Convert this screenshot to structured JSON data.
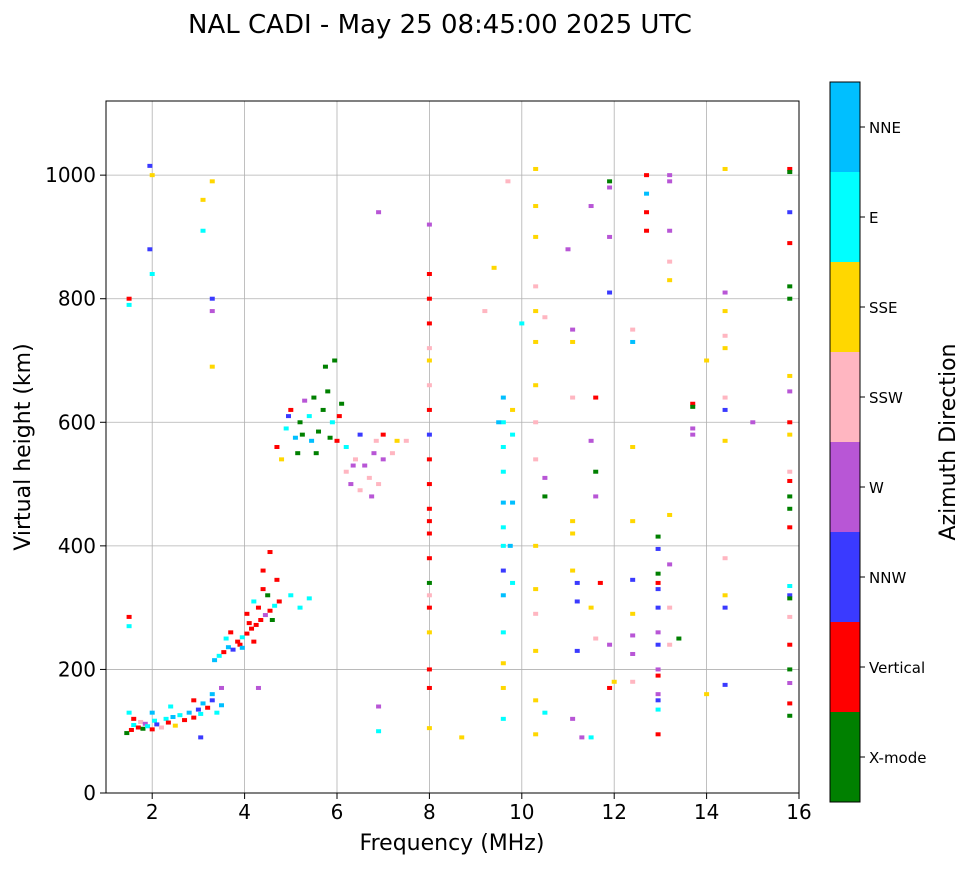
{
  "chart_data": {
    "type": "scatter",
    "title": "NAL CADI - May 25 08:45:00 2025 UTC",
    "xlabel": "Frequency (MHz)",
    "ylabel": "Virtual height (km)",
    "xlim": [
      1,
      16
    ],
    "ylim": [
      0,
      1120
    ],
    "xticks": [
      2,
      4,
      6,
      8,
      10,
      12,
      14,
      16
    ],
    "yticks": [
      0,
      200,
      400,
      600,
      800,
      1000
    ],
    "grid": true,
    "colorbar": {
      "label": "Azimuth Direction",
      "categories": [
        {
          "name": "X-mode",
          "color": "#008000"
        },
        {
          "name": "Vertical",
          "color": "#ff0000"
        },
        {
          "name": "NNW",
          "color": "#3a3aff"
        },
        {
          "name": "W",
          "color": "#b856d6"
        },
        {
          "name": "SSW",
          "color": "#ffb6c1"
        },
        {
          "name": "SSE",
          "color": "#ffd700"
        },
        {
          "name": "E",
          "color": "#00ffff"
        },
        {
          "name": "NNE",
          "color": "#00bfff"
        }
      ]
    },
    "points": [
      [
        1.45,
        97,
        0
      ],
      [
        1.55,
        102,
        1
      ],
      [
        1.6,
        110,
        6
      ],
      [
        1.7,
        106,
        1
      ],
      [
        1.75,
        115,
        4
      ],
      [
        1.8,
        104,
        0
      ],
      [
        1.85,
        112,
        3
      ],
      [
        1.9,
        108,
        6
      ],
      [
        2.0,
        103,
        1
      ],
      [
        2.05,
        117,
        6
      ],
      [
        2.1,
        111,
        2
      ],
      [
        2.2,
        106,
        4
      ],
      [
        2.3,
        120,
        6
      ],
      [
        2.35,
        114,
        1
      ],
      [
        2.45,
        123,
        7
      ],
      [
        2.5,
        109,
        5
      ],
      [
        2.6,
        126,
        6
      ],
      [
        2.7,
        118,
        1
      ],
      [
        2.8,
        130,
        7
      ],
      [
        2.9,
        122,
        1
      ],
      [
        3.0,
        135,
        2
      ],
      [
        3.05,
        128,
        6
      ],
      [
        3.1,
        145,
        7
      ],
      [
        3.2,
        138,
        1
      ],
      [
        3.3,
        150,
        2
      ],
      [
        3.4,
        130,
        6
      ],
      [
        3.5,
        142,
        7
      ],
      [
        1.5,
        130,
        6
      ],
      [
        1.6,
        120,
        1
      ],
      [
        2.0,
        130,
        7
      ],
      [
        2.4,
        140,
        6
      ],
      [
        2.9,
        150,
        1
      ],
      [
        3.3,
        160,
        7
      ],
      [
        3.35,
        215,
        7
      ],
      [
        3.45,
        222,
        6
      ],
      [
        3.55,
        228,
        1
      ],
      [
        3.65,
        236,
        7
      ],
      [
        3.75,
        232,
        2
      ],
      [
        3.85,
        245,
        1
      ],
      [
        3.95,
        252,
        6
      ],
      [
        4.05,
        258,
        1
      ],
      [
        4.15,
        266,
        1
      ],
      [
        4.25,
        272,
        1
      ],
      [
        4.35,
        280,
        1
      ],
      [
        4.45,
        288,
        3
      ],
      [
        4.55,
        295,
        1
      ],
      [
        4.65,
        303,
        6
      ],
      [
        4.75,
        310,
        1
      ],
      [
        3.6,
        250,
        6
      ],
      [
        3.9,
        240,
        1
      ],
      [
        4.1,
        275,
        1
      ],
      [
        4.3,
        300,
        1
      ],
      [
        4.5,
        320,
        0
      ],
      [
        4.7,
        345,
        1
      ],
      [
        4.2,
        310,
        6
      ],
      [
        4.4,
        360,
        1
      ],
      [
        4.55,
        390,
        1
      ],
      [
        5.0,
        320,
        6
      ],
      [
        5.2,
        300,
        6
      ],
      [
        5.4,
        315,
        6
      ],
      [
        3.7,
        260,
        1
      ],
      [
        3.95,
        235,
        7
      ],
      [
        4.2,
        245,
        1
      ],
      [
        4.05,
        290,
        1
      ],
      [
        4.4,
        330,
        1
      ],
      [
        4.6,
        280,
        0
      ],
      [
        4.9,
        590,
        6
      ],
      [
        5.0,
        620,
        1
      ],
      [
        5.1,
        575,
        7
      ],
      [
        5.2,
        600,
        0
      ],
      [
        5.3,
        635,
        3
      ],
      [
        5.4,
        610,
        6
      ],
      [
        5.5,
        640,
        0
      ],
      [
        5.6,
        585,
        0
      ],
      [
        5.7,
        620,
        0
      ],
      [
        5.8,
        650,
        0
      ],
      [
        5.9,
        600,
        6
      ],
      [
        6.0,
        570,
        1
      ],
      [
        6.1,
        630,
        0
      ],
      [
        6.2,
        560,
        6
      ],
      [
        5.15,
        550,
        0
      ],
      [
        5.45,
        570,
        7
      ],
      [
        5.75,
        690,
        0
      ],
      [
        5.95,
        700,
        0
      ],
      [
        4.7,
        560,
        1
      ],
      [
        4.8,
        540,
        5
      ],
      [
        4.95,
        610,
        2
      ],
      [
        5.25,
        580,
        0
      ],
      [
        5.55,
        550,
        0
      ],
      [
        5.85,
        575,
        0
      ],
      [
        6.05,
        610,
        1
      ],
      [
        6.2,
        520,
        4
      ],
      [
        6.3,
        500,
        3
      ],
      [
        6.4,
        540,
        4
      ],
      [
        6.5,
        490,
        4
      ],
      [
        6.6,
        530,
        3
      ],
      [
        6.7,
        510,
        4
      ],
      [
        6.8,
        550,
        3
      ],
      [
        6.9,
        500,
        4
      ],
      [
        7.0,
        540,
        3
      ],
      [
        6.85,
        570,
        4
      ],
      [
        6.5,
        580,
        2
      ],
      [
        7.2,
        550,
        4
      ],
      [
        7.3,
        570,
        5
      ],
      [
        7.5,
        570,
        4
      ],
      [
        7.0,
        580,
        1
      ],
      [
        6.35,
        530,
        3
      ],
      [
        6.75,
        480,
        3
      ],
      [
        8.0,
        840,
        1
      ],
      [
        8.0,
        800,
        1
      ],
      [
        8.0,
        760,
        1
      ],
      [
        8.0,
        700,
        5
      ],
      [
        8.0,
        660,
        4
      ],
      [
        8.0,
        620,
        1
      ],
      [
        8.0,
        580,
        2
      ],
      [
        8.0,
        540,
        1
      ],
      [
        8.0,
        500,
        1
      ],
      [
        8.0,
        460,
        1
      ],
      [
        8.0,
        420,
        1
      ],
      [
        8.0,
        380,
        1
      ],
      [
        8.0,
        340,
        0
      ],
      [
        8.0,
        300,
        1
      ],
      [
        8.0,
        260,
        5
      ],
      [
        8.0,
        200,
        1
      ],
      [
        8.0,
        170,
        1
      ],
      [
        8.0,
        105,
        5
      ],
      [
        8.0,
        920,
        3
      ],
      [
        8.0,
        720,
        4
      ],
      [
        8.0,
        440,
        1
      ],
      [
        8.0,
        320,
        4
      ],
      [
        9.6,
        640,
        7
      ],
      [
        9.6,
        600,
        6
      ],
      [
        9.6,
        560,
        6
      ],
      [
        9.6,
        520,
        6
      ],
      [
        9.6,
        470,
        7
      ],
      [
        9.6,
        430,
        6
      ],
      [
        9.6,
        400,
        6
      ],
      [
        9.6,
        360,
        2
      ],
      [
        9.6,
        320,
        7
      ],
      [
        9.6,
        260,
        6
      ],
      [
        9.6,
        210,
        5
      ],
      [
        9.6,
        170,
        5
      ],
      [
        9.6,
        120,
        6
      ],
      [
        9.8,
        580,
        6
      ],
      [
        9.8,
        470,
        7
      ],
      [
        9.8,
        340,
        6
      ],
      [
        9.4,
        850,
        5
      ],
      [
        9.5,
        600,
        7
      ],
      [
        9.7,
        990,
        4
      ],
      [
        9.8,
        620,
        5
      ],
      [
        9.75,
        400,
        7
      ],
      [
        10.3,
        1010,
        5
      ],
      [
        10.3,
        950,
        5
      ],
      [
        10.3,
        900,
        5
      ],
      [
        10.3,
        820,
        4
      ],
      [
        10.3,
        780,
        5
      ],
      [
        10.3,
        730,
        5
      ],
      [
        10.3,
        660,
        5
      ],
      [
        10.3,
        600,
        4
      ],
      [
        10.3,
        540,
        4
      ],
      [
        10.3,
        400,
        5
      ],
      [
        10.3,
        330,
        5
      ],
      [
        10.3,
        290,
        4
      ],
      [
        10.3,
        230,
        5
      ],
      [
        10.3,
        150,
        5
      ],
      [
        10.3,
        95,
        5
      ],
      [
        10.5,
        770,
        4
      ],
      [
        10.5,
        510,
        3
      ],
      [
        10.5,
        480,
        0
      ],
      [
        10.5,
        130,
        6
      ],
      [
        10.0,
        760,
        6
      ],
      [
        11.0,
        880,
        3
      ],
      [
        11.1,
        750,
        3
      ],
      [
        11.1,
        730,
        5
      ],
      [
        11.1,
        640,
        4
      ],
      [
        11.1,
        440,
        5
      ],
      [
        11.1,
        420,
        5
      ],
      [
        11.1,
        360,
        5
      ],
      [
        11.2,
        340,
        2
      ],
      [
        11.2,
        310,
        2
      ],
      [
        11.2,
        230,
        2
      ],
      [
        11.1,
        120,
        3
      ],
      [
        11.3,
        90,
        3
      ],
      [
        11.5,
        950,
        3
      ],
      [
        11.6,
        640,
        1
      ],
      [
        11.5,
        570,
        3
      ],
      [
        11.6,
        520,
        0
      ],
      [
        11.6,
        480,
        3
      ],
      [
        11.7,
        340,
        1
      ],
      [
        11.5,
        300,
        5
      ],
      [
        11.6,
        250,
        4
      ],
      [
        11.5,
        90,
        6
      ],
      [
        11.9,
        990,
        0
      ],
      [
        11.9,
        980,
        3
      ],
      [
        11.9,
        900,
        3
      ],
      [
        11.9,
        810,
        2
      ],
      [
        11.9,
        240,
        3
      ],
      [
        11.9,
        170,
        1
      ],
      [
        12.0,
        180,
        5
      ],
      [
        12.4,
        750,
        4
      ],
      [
        12.4,
        730,
        7
      ],
      [
        12.4,
        560,
        5
      ],
      [
        12.4,
        440,
        5
      ],
      [
        12.4,
        345,
        2
      ],
      [
        12.4,
        290,
        5
      ],
      [
        12.4,
        255,
        3
      ],
      [
        12.4,
        225,
        3
      ],
      [
        12.4,
        180,
        4
      ],
      [
        12.7,
        1000,
        1
      ],
      [
        12.7,
        970,
        7
      ],
      [
        12.7,
        940,
        1
      ],
      [
        12.7,
        910,
        1
      ],
      [
        12.95,
        415,
        0
      ],
      [
        12.95,
        395,
        2
      ],
      [
        12.95,
        340,
        1
      ],
      [
        12.95,
        330,
        2
      ],
      [
        12.95,
        300,
        2
      ],
      [
        12.95,
        260,
        3
      ],
      [
        12.95,
        240,
        2
      ],
      [
        12.95,
        200,
        3
      ],
      [
        12.95,
        190,
        1
      ],
      [
        12.95,
        160,
        3
      ],
      [
        12.95,
        150,
        2
      ],
      [
        12.95,
        135,
        6
      ],
      [
        12.95,
        95,
        1
      ],
      [
        12.95,
        355,
        0
      ],
      [
        13.2,
        1000,
        3
      ],
      [
        13.2,
        990,
        3
      ],
      [
        13.2,
        910,
        3
      ],
      [
        13.2,
        860,
        4
      ],
      [
        13.2,
        830,
        5
      ],
      [
        13.2,
        450,
        5
      ],
      [
        13.2,
        370,
        3
      ],
      [
        13.2,
        300,
        4
      ],
      [
        13.2,
        240,
        4
      ],
      [
        13.4,
        250,
        0
      ],
      [
        13.7,
        630,
        1
      ],
      [
        13.7,
        625,
        0
      ],
      [
        13.7,
        590,
        3
      ],
      [
        13.7,
        580,
        3
      ],
      [
        14.0,
        700,
        5
      ],
      [
        14.0,
        160,
        5
      ],
      [
        14.4,
        1010,
        5
      ],
      [
        14.4,
        810,
        3
      ],
      [
        14.4,
        780,
        5
      ],
      [
        14.4,
        740,
        4
      ],
      [
        14.4,
        720,
        5
      ],
      [
        14.4,
        640,
        4
      ],
      [
        14.4,
        620,
        2
      ],
      [
        14.4,
        570,
        5
      ],
      [
        14.4,
        380,
        4
      ],
      [
        14.4,
        320,
        5
      ],
      [
        14.4,
        300,
        2
      ],
      [
        14.4,
        175,
        2
      ],
      [
        15.0,
        600,
        3
      ],
      [
        15.8,
        1010,
        1
      ],
      [
        15.8,
        1005,
        0
      ],
      [
        15.8,
        940,
        2
      ],
      [
        15.8,
        890,
        1
      ],
      [
        15.8,
        820,
        0
      ],
      [
        15.8,
        800,
        0
      ],
      [
        15.8,
        675,
        5
      ],
      [
        15.8,
        650,
        3
      ],
      [
        15.8,
        600,
        1
      ],
      [
        15.8,
        580,
        5
      ],
      [
        15.8,
        520,
        4
      ],
      [
        15.8,
        505,
        1
      ],
      [
        15.8,
        480,
        0
      ],
      [
        15.8,
        460,
        0
      ],
      [
        15.8,
        430,
        1
      ],
      [
        15.8,
        335,
        6
      ],
      [
        15.8,
        320,
        2
      ],
      [
        15.8,
        315,
        0
      ],
      [
        15.8,
        285,
        4
      ],
      [
        15.8,
        240,
        1
      ],
      [
        15.8,
        200,
        0
      ],
      [
        15.8,
        178,
        3
      ],
      [
        15.8,
        145,
        1
      ],
      [
        15.8,
        125,
        0
      ],
      [
        1.5,
        285,
        1
      ],
      [
        1.5,
        270,
        6
      ],
      [
        1.5,
        800,
        1
      ],
      [
        1.5,
        790,
        6
      ],
      [
        1.95,
        1015,
        2
      ],
      [
        2.0,
        1000,
        5
      ],
      [
        1.95,
        880,
        2
      ],
      [
        2.0,
        840,
        6
      ],
      [
        3.1,
        960,
        5
      ],
      [
        3.1,
        910,
        6
      ],
      [
        3.3,
        990,
        5
      ],
      [
        3.3,
        800,
        2
      ],
      [
        3.3,
        780,
        3
      ],
      [
        3.3,
        690,
        5
      ],
      [
        3.05,
        90,
        2
      ],
      [
        3.5,
        170,
        3
      ],
      [
        4.3,
        170,
        3
      ],
      [
        6.9,
        940,
        3
      ],
      [
        6.9,
        140,
        3
      ],
      [
        6.9,
        100,
        6
      ],
      [
        8.7,
        90,
        5
      ],
      [
        9.2,
        780,
        4
      ]
    ]
  }
}
